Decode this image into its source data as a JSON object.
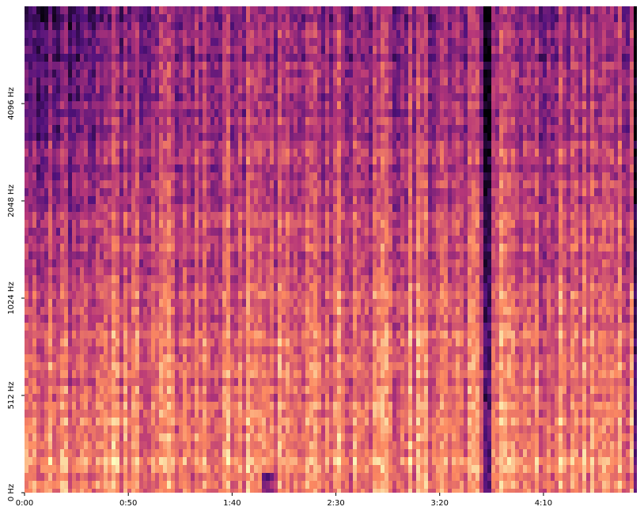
{
  "chart_data": {
    "type": "spectrogram",
    "xlim": [
      0,
      295
    ],
    "xticks": [
      {
        "value": 0,
        "label": "0:00"
      },
      {
        "value": 50,
        "label": "0:50"
      },
      {
        "value": 100,
        "label": "1:40"
      },
      {
        "value": 150,
        "label": "2:30"
      },
      {
        "value": 200,
        "label": "3:20"
      },
      {
        "value": 250,
        "label": "4:10"
      }
    ],
    "ylim": [
      0,
      8192
    ],
    "yscale": "symlog",
    "yticks": [
      {
        "value": 0,
        "label": "0 Hz"
      },
      {
        "value": 512,
        "label": "512 Hz"
      },
      {
        "value": 1024,
        "label": "1024 Hz"
      },
      {
        "value": 2048,
        "label": "2048 Hz"
      },
      {
        "value": 4096,
        "label": "4096 Hz"
      }
    ],
    "colormap": "magma"
  }
}
